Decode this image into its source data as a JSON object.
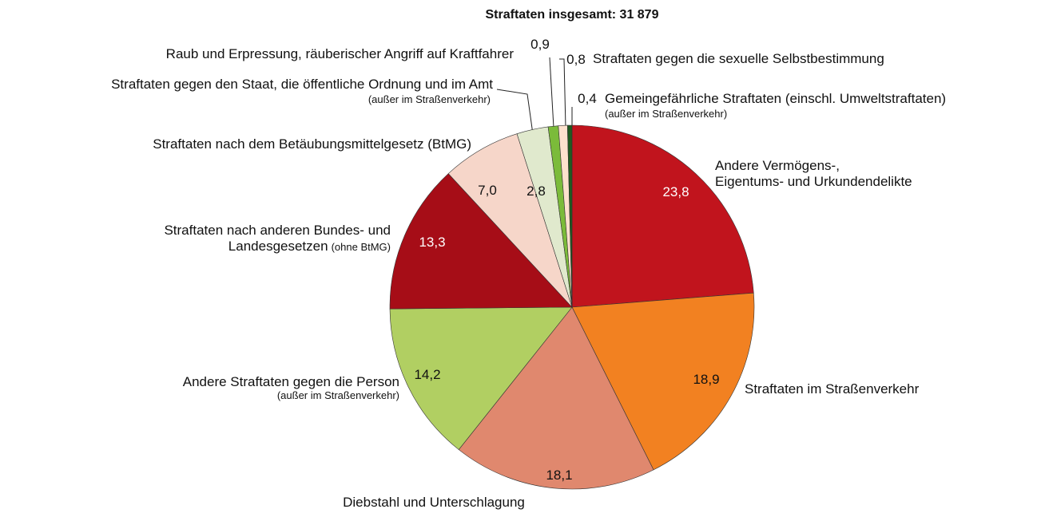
{
  "chart_data": {
    "type": "pie",
    "title": "Straftaten insgesamt: 31 879",
    "categories": [
      "Andere Vermögens-,\nEigentums- und Urkundendelikte",
      "Straftaten im Straßenverkehr",
      "Diebstahl und Unterschlagung",
      "Andere Straftaten gegen die Person",
      "Straftaten nach anderen Bundes- und\nLandesgesetzen",
      "Straftaten nach dem Betäubungsmittelgesetz (BtMG)",
      "Straftaten gegen den Staat, die öffentliche Ordnung und im Amt",
      "Raub und Erpressung, räuberischer Angriff auf Kraftfahrer",
      "Straftaten gegen die sexuelle Selbstbestimmung",
      "Gemeingefährliche Straftaten (einschl. Umweltstraftaten)"
    ],
    "notes": [
      null,
      null,
      null,
      "(außer im Straßenverkehr)",
      "(ohne BtMG)",
      null,
      "(außer im Straßenverkehr)",
      null,
      null,
      "(außer im Straßenverkehr)"
    ],
    "values": [
      23.8,
      18.9,
      18.1,
      14.2,
      13.3,
      7.0,
      2.8,
      0.9,
      0.8,
      0.4
    ],
    "value_labels": [
      "23,8",
      "18,9",
      "18,1",
      "14,2",
      "13,3",
      "7,0",
      "2,8",
      "0,9",
      "0,8",
      "0,4"
    ],
    "colors": [
      "#c1141d",
      "#f28121",
      "#e0886e",
      "#b1cf62",
      "#a60d17",
      "#f6d6c9",
      "#e0e9cd",
      "#7bbb3a",
      "#fde1cd",
      "#1f5a1f"
    ]
  }
}
